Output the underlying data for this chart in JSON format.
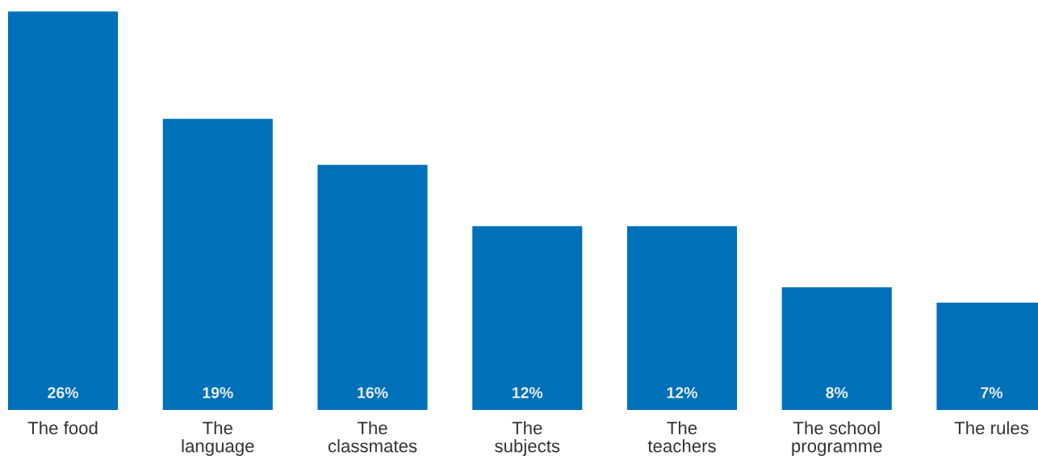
{
  "chart_data": {
    "type": "bar",
    "categories": [
      "The food",
      "The\nlanguage",
      "The\nclassmates",
      "The\nsubjects",
      "The\nteachers",
      "The school\nprogramme",
      "The rules"
    ],
    "values": [
      26,
      19,
      16,
      12,
      12,
      8,
      7
    ],
    "value_labels": [
      "26%",
      "19%",
      "16%",
      "12%",
      "12%",
      "8%",
      "7%"
    ],
    "color": "#0071b9",
    "grid": false,
    "legend": false
  }
}
